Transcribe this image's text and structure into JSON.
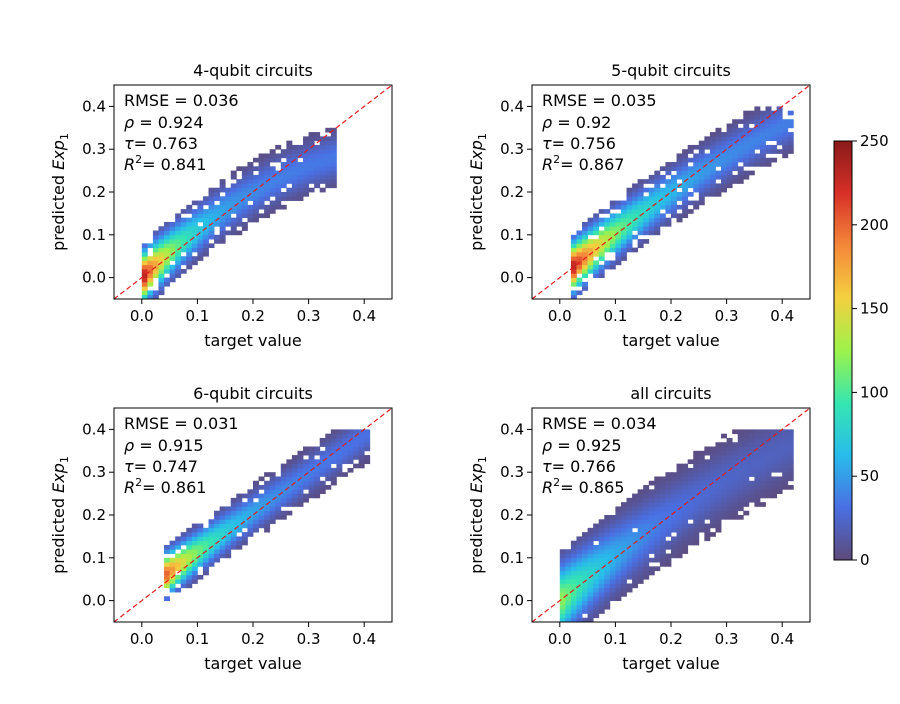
{
  "chart_data": {
    "type": "heatmap",
    "subtype": "2d-histogram-grid",
    "xlabel": "target value",
    "ylabel": "predicted Exp",
    "ylabel_subscript": "1",
    "xlim": [
      -0.05,
      0.45
    ],
    "ylim": [
      -0.05,
      0.45
    ],
    "x_ticks": [
      0.0,
      0.1,
      0.2,
      0.3,
      0.4
    ],
    "y_ticks": [
      0.0,
      0.1,
      0.2,
      0.3,
      0.4
    ],
    "tick_labels": [
      "0.0",
      "0.1",
      "0.2",
      "0.3",
      "0.4"
    ],
    "diagonal": {
      "style": "dashed",
      "color": "#e31a1c",
      "from": [
        -0.05,
        -0.05
      ],
      "to": [
        0.45,
        0.45
      ]
    },
    "colorbar": {
      "min": 0,
      "max": 250,
      "ticks": [
        0,
        50,
        100,
        150,
        200,
        250
      ],
      "tick_labels": [
        "0",
        "50",
        "100",
        "150",
        "200",
        "250"
      ],
      "colormap": "turbo",
      "colors": [
        "#5d4a7a",
        "#4a6fe3",
        "#28bceb",
        "#35e6b0",
        "#9df24a",
        "#f4d03f",
        "#f5883a",
        "#d73027",
        "#8b1a1a"
      ]
    },
    "panels": [
      {
        "title": "4-qubit circuits",
        "rmse_label": "RMSE = 0.036",
        "rho_sym": "ρ",
        "rho_val": " = 0.924",
        "tau_sym": "τ",
        "tau_val": "= 0.763",
        "r2_sym": "R",
        "r2_sup": "2",
        "r2_val": "= 0.841",
        "x_range": [
          0.0,
          0.34
        ],
        "dist": {
          "x0": 0.0,
          "x1": 0.34,
          "a": 0.0,
          "b": 1.25,
          "c": -1.3,
          "spread": 0.035,
          "peak": 230,
          "decay": 0.06,
          "sparsity": 0.35
        }
      },
      {
        "title": "5-qubit circuits",
        "rmse_label": "RMSE = 0.035",
        "rho_sym": "ρ",
        "rho_val": " = 0.92",
        "tau_sym": "τ",
        "tau_val": "= 0.756",
        "r2_sym": "R",
        "r2_sup": "2",
        "r2_val": "= 0.867",
        "x_range": [
          0.02,
          0.41
        ],
        "dist": {
          "x0": 0.02,
          "x1": 0.41,
          "a": 0.0,
          "b": 1.1,
          "c": -0.55,
          "spread": 0.035,
          "peak": 230,
          "decay": 0.09,
          "sparsity": 0.3
        }
      },
      {
        "title": "6-qubit circuits",
        "rmse_label": "RMSE = 0.031",
        "rho_sym": "ρ",
        "rho_val": " = 0.915",
        "tau_sym": "τ",
        "tau_val": "= 0.747",
        "r2_sym": "R",
        "r2_sup": "2",
        "r2_val": "= 0.861",
        "x_range": [
          0.04,
          0.4
        ],
        "dist": {
          "x0": 0.04,
          "x1": 0.4,
          "a": 0.02,
          "b": 0.95,
          "c": -0.1,
          "spread": 0.03,
          "peak": 200,
          "decay": 0.08,
          "sparsity": 0.3
        }
      },
      {
        "title": "all circuits",
        "rmse_label": "RMSE = 0.034",
        "rho_sym": "ρ",
        "rho_val": " = 0.925",
        "tau_sym": "τ",
        "tau_val": "= 0.766",
        "r2_sym": "R",
        "r2_sup": "2",
        "r2_val": "= 0.865",
        "x_range": [
          0.0,
          0.41
        ],
        "dist": {
          "x0": 0.0,
          "x1": 0.41,
          "a": 0.0,
          "b": 1.1,
          "c": -0.55,
          "spread": 0.05,
          "peak": 120,
          "decay": 0.1,
          "sparsity": 0.05
        }
      }
    ]
  }
}
